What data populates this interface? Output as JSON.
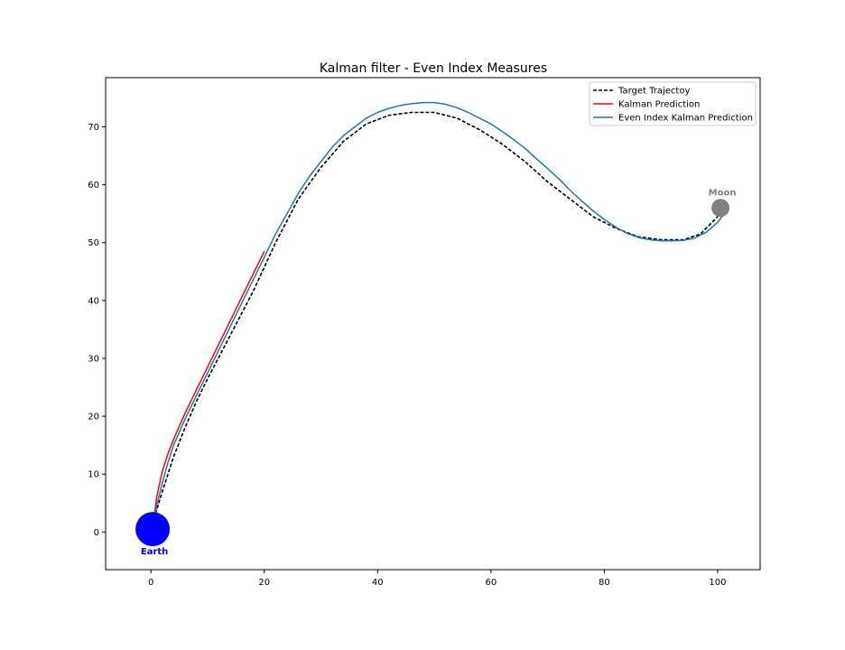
{
  "chart_data": {
    "type": "line",
    "title": "Kalman filter - Even Index Measures",
    "xlabel": "",
    "ylabel": "",
    "xlim": [
      -8,
      107.5
    ],
    "ylim": [
      -6.5,
      78.5
    ],
    "x_ticks": [
      0,
      20,
      40,
      60,
      80,
      100
    ],
    "y_ticks": [
      0,
      10,
      20,
      30,
      40,
      50,
      60,
      70
    ],
    "grid": false,
    "legend_position": "top-right",
    "series": [
      {
        "name": "Target Trajectoy",
        "color": "#000000",
        "style": "dashed",
        "x": [
          0,
          2,
          4,
          6,
          8,
          10,
          14,
          18,
          22,
          26,
          30,
          34,
          38,
          42,
          46,
          50,
          54,
          58,
          62,
          66,
          70,
          74,
          78,
          82,
          86,
          90,
          94,
          97,
          100,
          101
        ],
        "y": [
          0.5,
          7,
          13,
          18,
          22.5,
          26.5,
          34,
          41.5,
          50,
          57.5,
          63,
          67.5,
          70.5,
          72,
          72.5,
          72.5,
          71.5,
          69.5,
          67,
          64,
          60.5,
          57.5,
          54.5,
          52.5,
          51,
          50.5,
          50.5,
          51.5,
          54.5,
          56
        ]
      },
      {
        "name": "Kalman Prediction",
        "color": "#ff0000",
        "style": "solid",
        "x": [
          0.3,
          1,
          2,
          3,
          4,
          6,
          8,
          10,
          12,
          14,
          16,
          18,
          20
        ],
        "y": [
          0.5,
          6,
          10.5,
          13.5,
          16,
          20.5,
          24.5,
          28.5,
          32.5,
          36.5,
          40.5,
          44.5,
          48.5
        ]
      },
      {
        "name": "Even Index Kalman Prediction",
        "color": "#1f77b4",
        "style": "solid",
        "x": [
          0.3,
          1,
          2,
          3,
          4,
          6,
          8,
          10,
          12,
          14,
          16,
          18,
          20,
          22,
          24,
          26,
          28,
          30,
          32,
          34,
          36,
          38,
          40,
          42,
          44,
          46,
          48,
          50,
          52,
          54,
          56,
          58,
          60,
          62,
          64,
          66,
          68,
          70,
          72,
          74,
          76,
          78,
          80,
          82,
          84,
          86,
          88,
          90,
          92,
          94,
          96,
          98,
          100,
          101
        ],
        "y": [
          0.5,
          4.5,
          8.5,
          12,
          15,
          19.5,
          23.5,
          27.5,
          31.5,
          35.5,
          39.5,
          43.5,
          47.5,
          51.5,
          55,
          58.5,
          61.5,
          64,
          66.5,
          68.5,
          70,
          71.5,
          72.5,
          73.2,
          73.7,
          74,
          74.2,
          74.2,
          73.9,
          73.3,
          72.5,
          71.5,
          70.5,
          69.2,
          67.8,
          66.3,
          64.5,
          62.8,
          61,
          59,
          57.2,
          55.5,
          54,
          52.7,
          51.6,
          50.9,
          50.5,
          50.3,
          50.3,
          50.4,
          50.8,
          51.8,
          53.5,
          54.8
        ]
      }
    ],
    "annotations": [
      {
        "text": "Earth",
        "color": "#0000ff",
        "marker_x": 0.3,
        "marker_y": 0.5
      },
      {
        "text": "Moon",
        "color": "#808080",
        "marker_x": 100.5,
        "marker_y": 56
      }
    ]
  }
}
